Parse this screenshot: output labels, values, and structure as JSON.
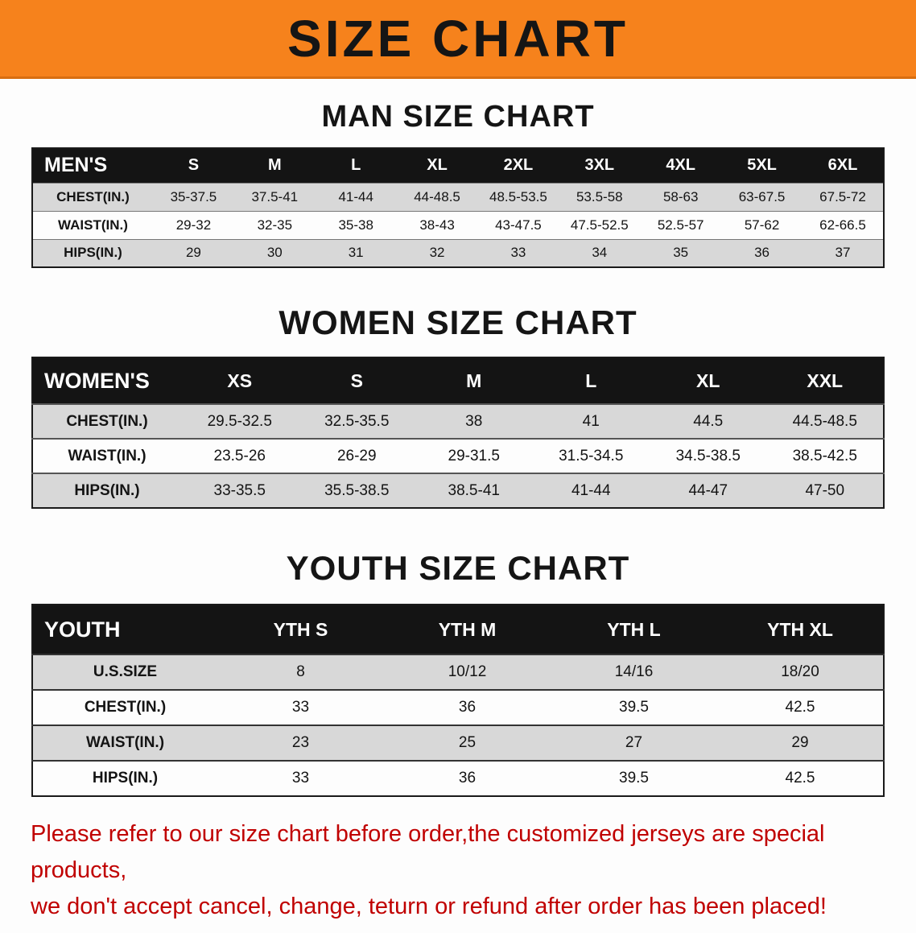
{
  "banner": {
    "title": "SIZE CHART"
  },
  "colors": {
    "accent_orange": "#F6821C",
    "header_black": "#141414",
    "stripe_gray": "#D8D8D8",
    "disclaimer_red": "#C00000"
  },
  "sections": [
    {
      "heading": "MAN SIZE CHART",
      "table": {
        "header_label": "MEN'S",
        "columns": [
          "S",
          "M",
          "L",
          "XL",
          "2XL",
          "3XL",
          "4XL",
          "5XL",
          "6XL"
        ],
        "rows": [
          {
            "label": "CHEST(IN.)",
            "values": [
              "35-37.5",
              "37.5-41",
              "41-44",
              "44-48.5",
              "48.5-53.5",
              "53.5-58",
              "58-63",
              "63-67.5",
              "67.5-72"
            ]
          },
          {
            "label": "WAIST(IN.)",
            "values": [
              "29-32",
              "32-35",
              "35-38",
              "38-43",
              "43-47.5",
              "47.5-52.5",
              "52.5-57",
              "57-62",
              "62-66.5"
            ]
          },
          {
            "label": "HIPS(IN.)",
            "values": [
              "29",
              "30",
              "31",
              "32",
              "33",
              "34",
              "35",
              "36",
              "37"
            ]
          }
        ]
      }
    },
    {
      "heading": "WOMEN SIZE CHART",
      "table": {
        "header_label": "WOMEN'S",
        "columns": [
          "XS",
          "S",
          "M",
          "L",
          "XL",
          "XXL"
        ],
        "rows": [
          {
            "label": "CHEST(IN.)",
            "values": [
              "29.5-32.5",
              "32.5-35.5",
              "38",
              "41",
              "44.5",
              "44.5-48.5"
            ]
          },
          {
            "label": "WAIST(IN.)",
            "values": [
              "23.5-26",
              "26-29",
              "29-31.5",
              "31.5-34.5",
              "34.5-38.5",
              "38.5-42.5"
            ]
          },
          {
            "label": "HIPS(IN.)",
            "values": [
              "33-35.5",
              "35.5-38.5",
              "38.5-41",
              "41-44",
              "44-47",
              "47-50"
            ]
          }
        ]
      }
    },
    {
      "heading": "YOUTH SIZE CHART",
      "table": {
        "header_label": "YOUTH",
        "columns": [
          "YTH S",
          "YTH M",
          "YTH L",
          "YTH XL"
        ],
        "rows": [
          {
            "label": "U.S.SIZE",
            "values": [
              "8",
              "10/12",
              "14/16",
              "18/20"
            ]
          },
          {
            "label": "CHEST(IN.)",
            "values": [
              "33",
              "36",
              "39.5",
              "42.5"
            ]
          },
          {
            "label": "WAIST(IN.)",
            "values": [
              "23",
              "25",
              "27",
              "29"
            ]
          },
          {
            "label": "HIPS(IN.)",
            "values": [
              "33",
              "36",
              "39.5",
              "42.5"
            ]
          }
        ]
      }
    }
  ],
  "disclaimer": {
    "lines": [
      "Please refer to our size chart before order,the customized jerseys are special products,",
      "we don't accept cancel, change, teturn or refund after order has been placed!"
    ]
  }
}
